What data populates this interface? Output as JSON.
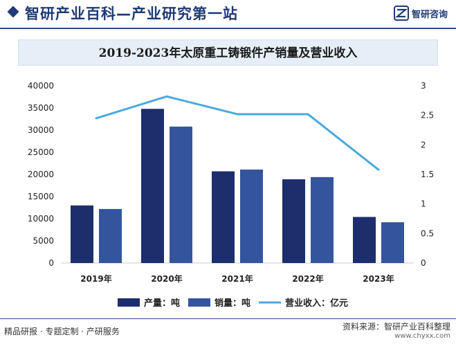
{
  "header": {
    "title": "智研产业百科—产业研究第一站",
    "logo_text": "智研咨询",
    "logo_icon": "zhiyan-logo-icon"
  },
  "colors": {
    "brand": "#1f3a75",
    "production": "#1c2e6b",
    "sales": "#34559e",
    "revenue": "#4aa8e0"
  },
  "chart_data": {
    "type": "bar",
    "title": "2019-2023年太原重工铸锻件产销量及营业收入",
    "categories": [
      "2019年",
      "2020年",
      "2021年",
      "2022年",
      "2023年"
    ],
    "series": [
      {
        "name": "产量：吨",
        "type": "bar",
        "axis": "left",
        "values": [
          13000,
          34800,
          20700,
          18900,
          10400
        ]
      },
      {
        "name": "销量：吨",
        "type": "bar",
        "axis": "left",
        "values": [
          12200,
          30800,
          21100,
          19400,
          9200
        ]
      },
      {
        "name": "营业收入：亿元",
        "type": "line",
        "axis": "right",
        "values": [
          2.45,
          2.82,
          2.52,
          2.52,
          1.58
        ]
      }
    ],
    "y_left": {
      "ylim": [
        0,
        40000
      ],
      "ticks": [
        "0",
        "5000",
        "10000",
        "15000",
        "20000",
        "25000",
        "30000",
        "35000",
        "40000"
      ]
    },
    "y_right": {
      "ylim": [
        0,
        3
      ],
      "ticks": [
        "0",
        "0.5",
        "1",
        "1.5",
        "2",
        "2.5",
        "3"
      ]
    },
    "grid": false,
    "legend_position": "bottom"
  },
  "footer": {
    "left": "精品研报 · 专题定制 · 产研服务",
    "source": "资料来源：智研产业百科整理",
    "url": "www.chyxx.com"
  }
}
